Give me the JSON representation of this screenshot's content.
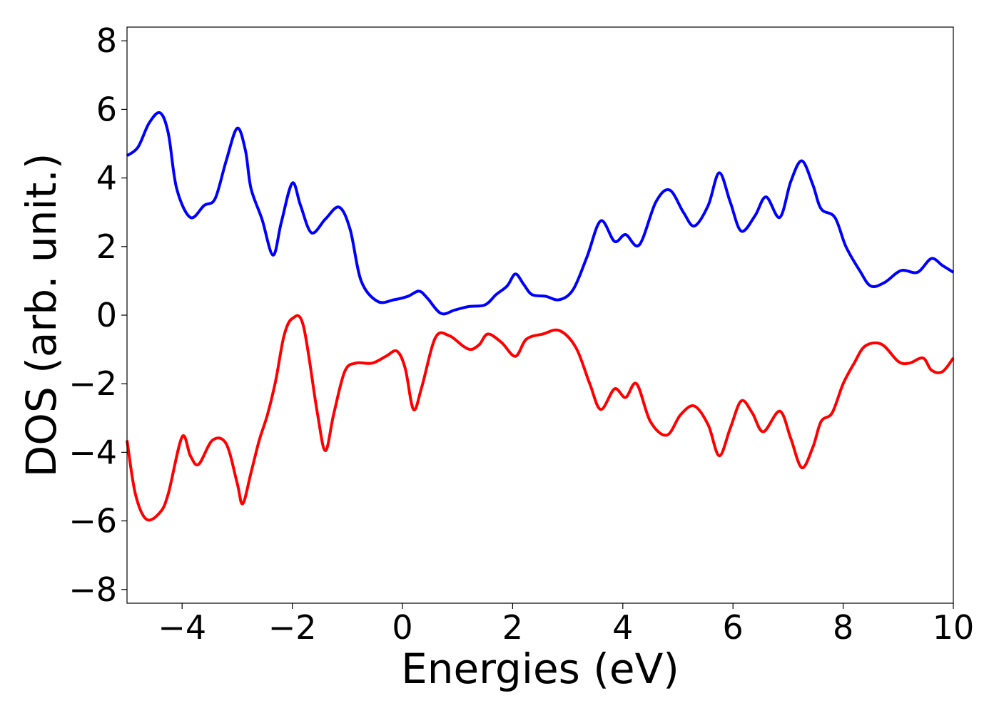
{
  "chart_data": {
    "type": "line",
    "title": "",
    "xlabel": "Energies (eV)",
    "ylabel": "DOS (arb. unit.)",
    "xlim": [
      -5,
      10
    ],
    "ylim": [
      -8.4,
      8.4
    ],
    "xticks": [
      -4,
      -2,
      0,
      2,
      4,
      6,
      8,
      10
    ],
    "yticks": [
      -8,
      -6,
      -4,
      -2,
      0,
      2,
      4,
      6,
      8
    ],
    "grid": false,
    "legend": "none",
    "series": [
      {
        "color": "#0000ff",
        "points": [
          [
            -5.0,
            4.65
          ],
          [
            -4.8,
            4.9
          ],
          [
            -4.6,
            5.6
          ],
          [
            -4.4,
            5.9
          ],
          [
            -4.25,
            5.3
          ],
          [
            -4.1,
            3.7
          ],
          [
            -3.85,
            2.85
          ],
          [
            -3.6,
            3.2
          ],
          [
            -3.4,
            3.4
          ],
          [
            -3.2,
            4.5
          ],
          [
            -3.0,
            5.45
          ],
          [
            -2.85,
            4.8
          ],
          [
            -2.75,
            3.7
          ],
          [
            -2.55,
            2.8
          ],
          [
            -2.35,
            1.75
          ],
          [
            -2.2,
            2.7
          ],
          [
            -2.0,
            3.85
          ],
          [
            -1.85,
            3.2
          ],
          [
            -1.65,
            2.4
          ],
          [
            -1.4,
            2.8
          ],
          [
            -1.15,
            3.15
          ],
          [
            -0.95,
            2.5
          ],
          [
            -0.75,
            1.0
          ],
          [
            -0.45,
            0.4
          ],
          [
            -0.15,
            0.45
          ],
          [
            0.1,
            0.55
          ],
          [
            0.3,
            0.7
          ],
          [
            0.45,
            0.5
          ],
          [
            0.7,
            0.05
          ],
          [
            0.95,
            0.15
          ],
          [
            1.2,
            0.25
          ],
          [
            1.5,
            0.3
          ],
          [
            1.7,
            0.6
          ],
          [
            1.9,
            0.85
          ],
          [
            2.05,
            1.2
          ],
          [
            2.2,
            0.9
          ],
          [
            2.35,
            0.6
          ],
          [
            2.6,
            0.55
          ],
          [
            2.85,
            0.45
          ],
          [
            3.1,
            0.75
          ],
          [
            3.35,
            1.7
          ],
          [
            3.6,
            2.75
          ],
          [
            3.85,
            2.15
          ],
          [
            4.05,
            2.35
          ],
          [
            4.3,
            2.05
          ],
          [
            4.6,
            3.3
          ],
          [
            4.85,
            3.65
          ],
          [
            5.1,
            3.0
          ],
          [
            5.3,
            2.6
          ],
          [
            5.55,
            3.2
          ],
          [
            5.75,
            4.15
          ],
          [
            5.95,
            3.3
          ],
          [
            6.15,
            2.45
          ],
          [
            6.4,
            2.9
          ],
          [
            6.6,
            3.45
          ],
          [
            6.85,
            2.85
          ],
          [
            7.05,
            3.9
          ],
          [
            7.25,
            4.5
          ],
          [
            7.45,
            3.8
          ],
          [
            7.6,
            3.1
          ],
          [
            7.85,
            2.85
          ],
          [
            8.05,
            2.0
          ],
          [
            8.3,
            1.3
          ],
          [
            8.5,
            0.85
          ],
          [
            8.75,
            0.95
          ],
          [
            9.05,
            1.3
          ],
          [
            9.35,
            1.25
          ],
          [
            9.6,
            1.65
          ],
          [
            9.8,
            1.45
          ],
          [
            10.0,
            1.25
          ]
        ]
      },
      {
        "color": "#ff0000",
        "points": [
          [
            -5.0,
            -3.65
          ],
          [
            -4.85,
            -5.2
          ],
          [
            -4.65,
            -5.95
          ],
          [
            -4.4,
            -5.75
          ],
          [
            -4.25,
            -5.2
          ],
          [
            -4.0,
            -3.55
          ],
          [
            -3.85,
            -4.1
          ],
          [
            -3.7,
            -4.35
          ],
          [
            -3.45,
            -3.65
          ],
          [
            -3.2,
            -3.75
          ],
          [
            -3.0,
            -4.9
          ],
          [
            -2.9,
            -5.5
          ],
          [
            -2.75,
            -4.6
          ],
          [
            -2.6,
            -3.65
          ],
          [
            -2.45,
            -2.9
          ],
          [
            -2.3,
            -1.9
          ],
          [
            -2.15,
            -0.6
          ],
          [
            -2.0,
            -0.1
          ],
          [
            -1.8,
            -0.3
          ],
          [
            -1.55,
            -2.8
          ],
          [
            -1.4,
            -3.95
          ],
          [
            -1.25,
            -2.9
          ],
          [
            -1.05,
            -1.65
          ],
          [
            -0.85,
            -1.4
          ],
          [
            -0.55,
            -1.4
          ],
          [
            -0.3,
            -1.2
          ],
          [
            -0.1,
            -1.05
          ],
          [
            0.05,
            -1.55
          ],
          [
            0.2,
            -2.75
          ],
          [
            0.35,
            -2.1
          ],
          [
            0.6,
            -0.65
          ],
          [
            0.85,
            -0.6
          ],
          [
            1.1,
            -0.9
          ],
          [
            1.25,
            -1.0
          ],
          [
            1.4,
            -0.85
          ],
          [
            1.55,
            -0.55
          ],
          [
            1.8,
            -0.8
          ],
          [
            2.05,
            -1.2
          ],
          [
            2.25,
            -0.7
          ],
          [
            2.55,
            -0.55
          ],
          [
            2.85,
            -0.45
          ],
          [
            3.15,
            -0.95
          ],
          [
            3.4,
            -2.0
          ],
          [
            3.6,
            -2.75
          ],
          [
            3.85,
            -2.15
          ],
          [
            4.05,
            -2.4
          ],
          [
            4.25,
            -2.0
          ],
          [
            4.5,
            -3.1
          ],
          [
            4.8,
            -3.5
          ],
          [
            5.05,
            -2.9
          ],
          [
            5.3,
            -2.65
          ],
          [
            5.55,
            -3.2
          ],
          [
            5.75,
            -4.1
          ],
          [
            5.95,
            -3.3
          ],
          [
            6.15,
            -2.5
          ],
          [
            6.35,
            -2.85
          ],
          [
            6.55,
            -3.4
          ],
          [
            6.85,
            -2.8
          ],
          [
            7.05,
            -3.6
          ],
          [
            7.25,
            -4.45
          ],
          [
            7.45,
            -3.85
          ],
          [
            7.6,
            -3.1
          ],
          [
            7.8,
            -2.85
          ],
          [
            8.0,
            -2.0
          ],
          [
            8.2,
            -1.4
          ],
          [
            8.4,
            -0.9
          ],
          [
            8.7,
            -0.85
          ],
          [
            9.0,
            -1.35
          ],
          [
            9.2,
            -1.4
          ],
          [
            9.45,
            -1.25
          ],
          [
            9.6,
            -1.6
          ],
          [
            9.8,
            -1.65
          ],
          [
            10.0,
            -1.25
          ]
        ]
      }
    ]
  }
}
